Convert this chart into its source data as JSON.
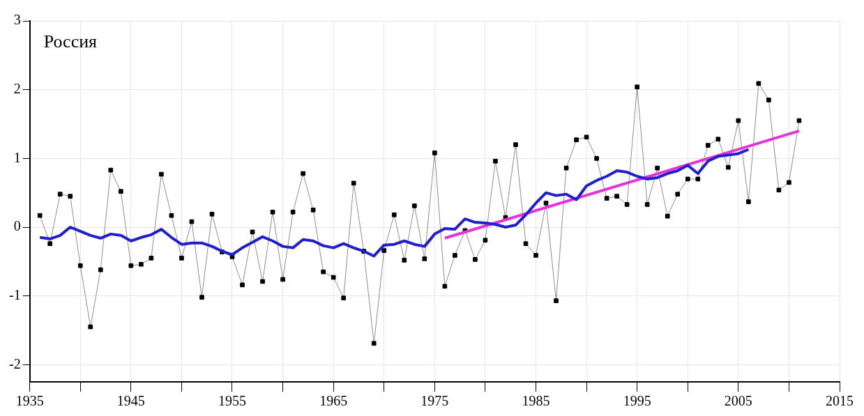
{
  "chart_data": {
    "type": "line",
    "annotations": [
      "Россия"
    ],
    "xlim": [
      1935,
      2015
    ],
    "ylim": [
      -2.25,
      3
    ],
    "xticks": [
      1935,
      {
        "value": 1940,
        "label": null
      },
      1945,
      {
        "value": 1950,
        "label": null
      },
      1955,
      {
        "value": 1960,
        "label": null
      },
      1965,
      {
        "value": 1970,
        "label": null
      },
      1975,
      {
        "value": 1980,
        "label": null
      },
      1985,
      {
        "value": 1990,
        "label": null
      },
      1995,
      {
        "value": 2000,
        "label": null
      },
      2005,
      {
        "value": 2010,
        "label": null
      },
      2015
    ],
    "yticks": [
      -2,
      -1,
      0,
      1,
      2,
      3
    ],
    "grid": true,
    "legend": false,
    "series": [
      {
        "type": "line",
        "color": "#000000",
        "marker": "square",
        "line_style": "solid",
        "x": [
          1936,
          1937,
          1938,
          1939,
          1940,
          1941,
          1942,
          1943,
          1944,
          1945,
          1946,
          1947,
          1948,
          1949,
          1950,
          1951,
          1952,
          1953,
          1954,
          1955,
          1956,
          1957,
          1958,
          1959,
          1960,
          1961,
          1962,
          1963,
          1964,
          1965,
          1966,
          1967,
          1968,
          1969,
          1970,
          1971,
          1972,
          1973,
          1974,
          1975,
          1976,
          1977,
          1978,
          1979,
          1980,
          1981,
          1982,
          1983,
          1984,
          1985,
          1986,
          1987,
          1988,
          1989,
          1990,
          1991,
          1992,
          1993,
          1994,
          1995,
          1996,
          1997,
          1998,
          1999,
          2000,
          2001,
          2002,
          2003,
          2004,
          2005,
          2006,
          2007,
          2008,
          2009,
          2010,
          2011
        ],
        "values": [
          0.17,
          -0.24,
          0.48,
          0.45,
          -0.56,
          -1.45,
          -0.62,
          0.83,
          0.52,
          -0.56,
          -0.54,
          -0.45,
          0.77,
          0.17,
          -0.45,
          0.08,
          -1.02,
          0.19,
          -0.36,
          -0.43,
          -0.84,
          -0.07,
          -0.79,
          0.22,
          -0.76,
          0.22,
          0.78,
          0.25,
          -0.65,
          -0.73,
          -1.03,
          0.64,
          -0.35,
          -1.69,
          -0.34,
          0.18,
          -0.48,
          0.31,
          -0.46,
          1.08,
          -0.86,
          -0.41,
          -0.05,
          -0.47,
          -0.19,
          0.96,
          0.14,
          1.2,
          -0.24,
          -0.41,
          0.35,
          -1.07,
          0.86,
          1.27,
          1.31,
          1.0,
          0.42,
          0.45,
          0.33,
          2.04,
          0.33,
          0.86,
          0.16,
          0.48,
          0.7,
          0.7,
          1.19,
          1.28,
          0.87,
          1.55,
          0.37,
          2.09,
          1.85,
          0.54,
          0.65,
          1.55
        ]
      },
      {
        "type": "line",
        "color": "#1f1fd0",
        "marker": "none",
        "line_style": "solid",
        "x": [
          1936,
          1937,
          1938,
          1939,
          1940,
          1941,
          1942,
          1943,
          1944,
          1945,
          1946,
          1947,
          1948,
          1949,
          1950,
          1951,
          1952,
          1953,
          1954,
          1955,
          1956,
          1957,
          1958,
          1959,
          1960,
          1961,
          1962,
          1963,
          1964,
          1965,
          1966,
          1967,
          1968,
          1969,
          1970,
          1971,
          1972,
          1973,
          1974,
          1975,
          1976,
          1977,
          1978,
          1979,
          1980,
          1981,
          1982,
          1983,
          1984,
          1985,
          1986,
          1987,
          1988,
          1989,
          1990,
          1991,
          1992,
          1993,
          1994,
          1995,
          1996,
          1997,
          1998,
          1999,
          2000,
          2001,
          2002,
          2003,
          2004,
          2005,
          2006
        ],
        "values": [
          -0.15,
          -0.17,
          -0.12,
          0.0,
          -0.06,
          -0.12,
          -0.16,
          -0.1,
          -0.12,
          -0.2,
          -0.15,
          -0.11,
          -0.03,
          -0.15,
          -0.25,
          -0.23,
          -0.23,
          -0.28,
          -0.35,
          -0.4,
          -0.3,
          -0.22,
          -0.14,
          -0.2,
          -0.28,
          -0.3,
          -0.18,
          -0.2,
          -0.27,
          -0.3,
          -0.24,
          -0.3,
          -0.35,
          -0.42,
          -0.26,
          -0.25,
          -0.2,
          -0.25,
          -0.28,
          -0.1,
          -0.02,
          -0.03,
          0.12,
          0.07,
          0.06,
          0.04,
          0.0,
          0.03,
          0.18,
          0.35,
          0.5,
          0.46,
          0.48,
          0.4,
          0.6,
          0.68,
          0.74,
          0.82,
          0.8,
          0.74,
          0.7,
          0.72,
          0.78,
          0.82,
          0.9,
          0.78,
          0.96,
          1.03,
          1.05,
          1.07,
          1.13
        ]
      },
      {
        "type": "line",
        "color": "#e633d9",
        "marker": "none",
        "line_style": "solid",
        "x": [
          1976,
          2011
        ],
        "values": [
          -0.16,
          1.4
        ]
      }
    ]
  }
}
